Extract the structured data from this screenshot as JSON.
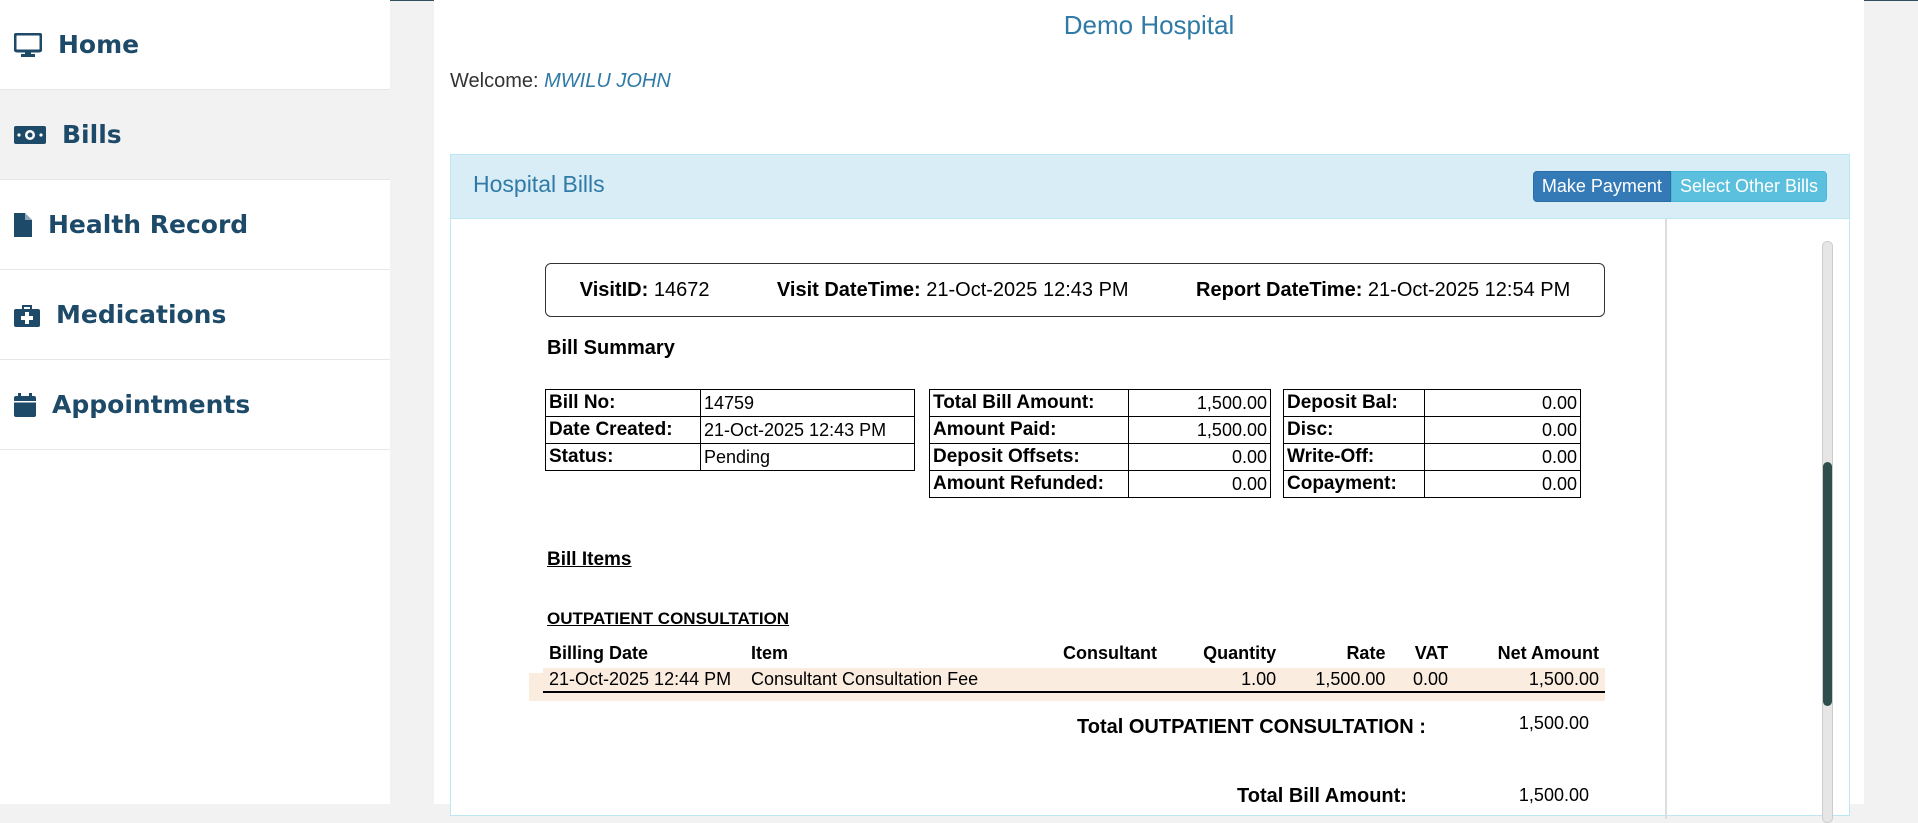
{
  "sidebar": {
    "items": [
      {
        "label": "Home",
        "icon": "desktop-icon"
      },
      {
        "label": "Bills",
        "icon": "money-bill-icon"
      },
      {
        "label": "Health Record",
        "icon": "file-icon"
      },
      {
        "label": "Medications",
        "icon": "medkit-icon"
      },
      {
        "label": "Appointments",
        "icon": "calendar-icon"
      }
    ]
  },
  "header": {
    "hospital_name": "Demo Hospital",
    "welcome_label": "Welcome:",
    "user_name": "MWILU JOHN"
  },
  "panel": {
    "title": "Hospital Bills",
    "make_payment_label": "Make Payment",
    "select_other_label": "Select Other Bills"
  },
  "visit": {
    "visit_id_label": "VisitID:",
    "visit_id": "14672",
    "visit_datetime_label": "Visit DateTime:",
    "visit_datetime": "21-Oct-2025 12:43 PM",
    "report_datetime_label": "Report DateTime:",
    "report_datetime": "21-Oct-2025 12:54 PM"
  },
  "summary": {
    "heading": "Bill Summary",
    "bill_no_label": "Bill No:",
    "bill_no": "14759",
    "date_created_label": "Date Created:",
    "date_created": "21-Oct-2025 12:43 PM",
    "status_label": "Status:",
    "status": "Pending",
    "total_bill_amount_label": "Total Bill Amount:",
    "total_bill_amount": "1,500.00",
    "amount_paid_label": "Amount Paid:",
    "amount_paid": "1,500.00",
    "deposit_offsets_label": "Deposit Offsets:",
    "deposit_offsets": "0.00",
    "amount_refunded_label": "Amount Refunded:",
    "amount_refunded": "0.00",
    "deposit_bal_label": "Deposit Bal:",
    "deposit_bal": "0.00",
    "disc_label": "Disc:",
    "disc": "0.00",
    "write_off_label": "Write-Off:",
    "write_off": "0.00",
    "copayment_label": "Copayment:",
    "copayment": "0.00"
  },
  "items": {
    "heading": "Bill Items",
    "category": "OUTPATIENT CONSULTATION",
    "columns": [
      "Billing Date",
      "Item",
      "Consultant",
      "Quantity",
      "Rate",
      "VAT",
      "Net Amount"
    ],
    "rows": [
      {
        "billing_date": "21-Oct-2025 12:44 PM",
        "item": "Consultant Consultation Fee",
        "consultant": "",
        "quantity": "1.00",
        "rate": "1,500.00",
        "vat": "0.00",
        "net_amount": "1,500.00"
      }
    ],
    "category_total_label": "Total OUTPATIENT CONSULTATION :",
    "category_total": "1,500.00",
    "bill_total_label": "Total Bill Amount:",
    "bill_total": "1,500.00"
  }
}
